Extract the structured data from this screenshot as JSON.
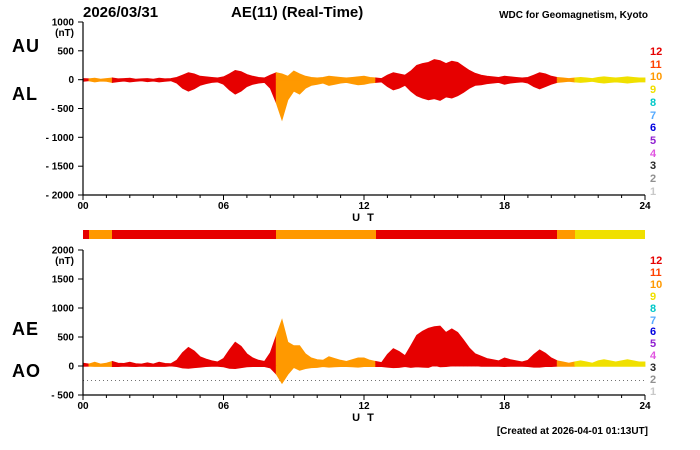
{
  "header": {
    "date": "2026/03/31",
    "title": "AE(11) (Real-Time)",
    "org": "WDC for Geomagnetism, Kyoto"
  },
  "footer": {
    "created": "[Created at 2026-04-01 01:13UT]"
  },
  "station_legend": [
    {
      "count": 12,
      "color": "#e60000"
    },
    {
      "count": 11,
      "color": "#ff4000"
    },
    {
      "count": 10,
      "color": "#ff9900"
    },
    {
      "count": 9,
      "color": "#f0e000"
    },
    {
      "count": 8,
      "color": "#00c8c8"
    },
    {
      "count": 7,
      "color": "#55aaff"
    },
    {
      "count": 6,
      "color": "#0000e0"
    },
    {
      "count": 5,
      "color": "#9020d0"
    },
    {
      "count": 4,
      "color": "#e055e0"
    },
    {
      "count": 3,
      "color": "#282828"
    },
    {
      "count": 2,
      "color": "#909090"
    },
    {
      "count": 1,
      "color": "#c8c8c8"
    }
  ],
  "quality_segments": [
    {
      "start": 0,
      "end": 0.25,
      "count": 12
    },
    {
      "start": 0.25,
      "end": 1.25,
      "count": 10
    },
    {
      "start": 1.25,
      "end": 8.25,
      "count": 12
    },
    {
      "start": 8.25,
      "end": 12.5,
      "count": 10
    },
    {
      "start": 12.5,
      "end": 20.25,
      "count": 12
    },
    {
      "start": 20.25,
      "end": 21.0,
      "count": 10
    },
    {
      "start": 21.0,
      "end": 24,
      "count": 9
    }
  ],
  "chart_data": [
    {
      "type": "area",
      "name": "AU/AL auroral electrojet indices",
      "left_labels": [
        "AU",
        "AL"
      ],
      "ylabel_unit": "(nT)",
      "ylim": [
        -2000,
        1000
      ],
      "yticks": [
        1000,
        500,
        0,
        -500,
        -1000,
        -1500,
        -2000
      ],
      "xticks": [
        "00",
        "06",
        "12",
        "18",
        "24"
      ],
      "xlabel": "U T",
      "x_start": 0,
      "x_end": 24,
      "x_step": 0.25,
      "dotted_lines": [
        0
      ],
      "series": [
        {
          "name": "AU",
          "values": [
            20,
            15,
            25,
            10,
            20,
            30,
            15,
            20,
            25,
            10,
            15,
            20,
            10,
            25,
            15,
            20,
            40,
            80,
            120,
            100,
            60,
            50,
            40,
            30,
            50,
            100,
            160,
            140,
            90,
            60,
            40,
            30,
            80,
            120,
            100,
            60,
            150,
            100,
            60,
            40,
            30,
            40,
            60,
            50,
            40,
            30,
            40,
            50,
            60,
            40,
            30,
            20,
            80,
            120,
            100,
            80,
            150,
            250,
            280,
            300,
            350,
            330,
            280,
            320,
            300,
            230,
            160,
            110,
            80,
            60,
            50,
            40,
            60,
            50,
            40,
            30,
            40,
            80,
            120,
            100,
            60,
            40,
            30,
            20,
            30,
            40,
            30,
            20,
            40,
            50,
            40,
            30,
            40,
            50,
            40,
            30
          ]
        },
        {
          "name": "AL",
          "values": [
            -30,
            -20,
            -40,
            -25,
            -30,
            -50,
            -35,
            -25,
            -40,
            -30,
            -20,
            -35,
            -25,
            -40,
            -30,
            -20,
            -60,
            -150,
            -200,
            -160,
            -100,
            -70,
            -50,
            -40,
            -80,
            -180,
            -250,
            -200,
            -120,
            -80,
            -60,
            -50,
            -150,
            -400,
            -700,
            -350,
            -200,
            -250,
            -150,
            -100,
            -80,
            -60,
            -100,
            -80,
            -60,
            -50,
            -70,
            -90,
            -80,
            -60,
            -50,
            -40,
            -120,
            -180,
            -150,
            -100,
            -200,
            -280,
            -320,
            -350,
            -330,
            -360,
            -300,
            -320,
            -280,
            -220,
            -150,
            -100,
            -90,
            -70,
            -60,
            -50,
            -80,
            -60,
            -50,
            -40,
            -60,
            -120,
            -160,
            -120,
            -80,
            -50,
            -40,
            -30,
            -40,
            -50,
            -40,
            -30,
            -50,
            -60,
            -50,
            -40,
            -50,
            -60,
            -50,
            -40
          ]
        }
      ]
    },
    {
      "type": "area",
      "name": "AE/AO auroral electrojet indices",
      "left_labels": [
        "AE",
        "AO"
      ],
      "ylabel_unit": "(nT)",
      "ylim": [
        -500,
        2000
      ],
      "yticks": [
        2000,
        1500,
        1000,
        500,
        0,
        -500
      ],
      "xticks": [
        "00",
        "06",
        "12",
        "18",
        "24"
      ],
      "xlabel": "U T",
      "x_start": 0,
      "x_end": 24,
      "x_step": 0.25,
      "dotted_lines": [
        0,
        -250
      ],
      "series": [
        {
          "name": "AE",
          "values": [
            50,
            35,
            65,
            35,
            50,
            80,
            50,
            45,
            65,
            40,
            35,
            55,
            35,
            65,
            45,
            40,
            100,
            230,
            320,
            260,
            160,
            120,
            90,
            70,
            130,
            280,
            410,
            340,
            210,
            140,
            100,
            80,
            230,
            520,
            800,
            410,
            350,
            350,
            210,
            140,
            110,
            100,
            160,
            130,
            100,
            80,
            110,
            140,
            140,
            100,
            80,
            60,
            200,
            300,
            250,
            180,
            350,
            530,
            600,
            650,
            680,
            690,
            580,
            640,
            580,
            450,
            310,
            210,
            170,
            130,
            110,
            90,
            140,
            110,
            90,
            70,
            100,
            200,
            280,
            220,
            140,
            90,
            70,
            50,
            70,
            90,
            70,
            50,
            90,
            110,
            90,
            70,
            90,
            110,
            90,
            70
          ]
        },
        {
          "name": "AO",
          "values": [
            -5,
            -3,
            -8,
            -8,
            -5,
            -10,
            -10,
            -3,
            -8,
            -10,
            -3,
            -8,
            -8,
            -8,
            -8,
            0,
            -10,
            -35,
            -40,
            -30,
            -20,
            -10,
            -5,
            -5,
            -15,
            -40,
            -45,
            -30,
            -15,
            -10,
            -10,
            -10,
            -35,
            -140,
            -300,
            -145,
            -25,
            -75,
            -45,
            -30,
            -25,
            -10,
            -20,
            -15,
            -10,
            -10,
            -15,
            -20,
            -10,
            -10,
            -10,
            -10,
            -20,
            -30,
            -25,
            -10,
            -25,
            -15,
            -20,
            -25,
            10,
            -15,
            -10,
            0,
            10,
            5,
            5,
            5,
            -5,
            -5,
            -5,
            -5,
            -10,
            -5,
            -5,
            -5,
            -10,
            -20,
            -20,
            -10,
            -10,
            -5,
            -5,
            -5,
            -5,
            -5,
            -5,
            -5,
            -5,
            -5,
            -5,
            -5,
            -5,
            -5,
            -5,
            -5
          ]
        }
      ]
    }
  ]
}
